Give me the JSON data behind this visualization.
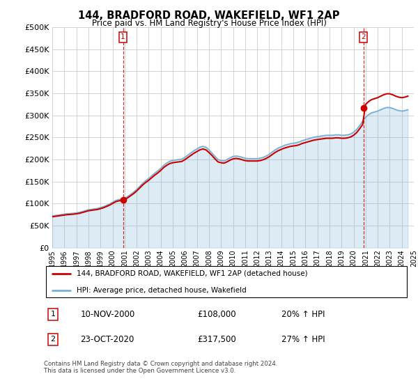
{
  "title": "144, BRADFORD ROAD, WAKEFIELD, WF1 2AP",
  "subtitle": "Price paid vs. HM Land Registry's House Price Index (HPI)",
  "legend_line1": "144, BRADFORD ROAD, WAKEFIELD, WF1 2AP (detached house)",
  "legend_line2": "HPI: Average price, detached house, Wakefield",
  "annotation1_label": "1",
  "annotation1_date": "10-NOV-2000",
  "annotation1_price": "£108,000",
  "annotation1_hpi": "20% ↑ HPI",
  "annotation1_year": 2000.87,
  "annotation1_value": 108000,
  "annotation2_label": "2",
  "annotation2_date": "23-OCT-2020",
  "annotation2_price": "£317,500",
  "annotation2_hpi": "27% ↑ HPI",
  "annotation2_year": 2020.81,
  "annotation2_value": 317500,
  "sale_color": "#cc0000",
  "hpi_color": "#7ab0d4",
  "ylim": [
    0,
    500000
  ],
  "yticks": [
    0,
    50000,
    100000,
    150000,
    200000,
    250000,
    300000,
    350000,
    400000,
    450000,
    500000
  ],
  "background_color": "#ffffff",
  "grid_color": "#cccccc",
  "footer_text": "Contains HM Land Registry data © Crown copyright and database right 2024.\nThis data is licensed under the Open Government Licence v3.0.",
  "hpi_years": [
    1995,
    1995.25,
    1995.5,
    1995.75,
    1996,
    1996.25,
    1996.5,
    1996.75,
    1997,
    1997.25,
    1997.5,
    1997.75,
    1998,
    1998.25,
    1998.5,
    1998.75,
    1999,
    1999.25,
    1999.5,
    1999.75,
    2000,
    2000.25,
    2000.5,
    2000.75,
    2001,
    2001.25,
    2001.5,
    2001.75,
    2002,
    2002.25,
    2002.5,
    2002.75,
    2003,
    2003.25,
    2003.5,
    2003.75,
    2004,
    2004.25,
    2004.5,
    2004.75,
    2005,
    2005.25,
    2005.5,
    2005.75,
    2006,
    2006.25,
    2006.5,
    2006.75,
    2007,
    2007.25,
    2007.5,
    2007.75,
    2008,
    2008.25,
    2008.5,
    2008.75,
    2009,
    2009.25,
    2009.5,
    2009.75,
    2010,
    2010.25,
    2010.5,
    2010.75,
    2011,
    2011.25,
    2011.5,
    2011.75,
    2012,
    2012.25,
    2012.5,
    2012.75,
    2013,
    2013.25,
    2013.5,
    2013.75,
    2014,
    2014.25,
    2014.5,
    2014.75,
    2015,
    2015.25,
    2015.5,
    2015.75,
    2016,
    2016.25,
    2016.5,
    2016.75,
    2017,
    2017.25,
    2017.5,
    2017.75,
    2018,
    2018.25,
    2018.5,
    2018.75,
    2019,
    2019.25,
    2019.5,
    2019.75,
    2020,
    2020.25,
    2020.5,
    2020.75,
    2021,
    2021.25,
    2021.5,
    2021.75,
    2022,
    2022.25,
    2022.5,
    2022.75,
    2023,
    2023.25,
    2023.5,
    2023.75,
    2024,
    2024.25,
    2024.5
  ],
  "hpi_values": [
    72000,
    73000,
    74000,
    75000,
    76000,
    77000,
    77500,
    78000,
    79000,
    80000,
    82000,
    84000,
    86000,
    87000,
    88000,
    89000,
    91000,
    93000,
    96000,
    99000,
    103000,
    107000,
    109000,
    110000,
    112000,
    116000,
    121000,
    126000,
    132000,
    139000,
    146000,
    152000,
    157000,
    163000,
    169000,
    174000,
    180000,
    187000,
    192000,
    196000,
    198000,
    199000,
    200000,
    201000,
    205000,
    210000,
    215000,
    220000,
    224000,
    228000,
    230000,
    228000,
    222000,
    215000,
    207000,
    200000,
    198000,
    197000,
    200000,
    204000,
    207000,
    208000,
    207000,
    205000,
    203000,
    202000,
    202000,
    202000,
    202000,
    203000,
    205000,
    208000,
    212000,
    217000,
    222000,
    226000,
    229000,
    232000,
    234000,
    236000,
    237000,
    238000,
    240000,
    243000,
    245000,
    247000,
    249000,
    251000,
    252000,
    253000,
    254000,
    255000,
    255000,
    255000,
    256000,
    256000,
    255000,
    255000,
    256000,
    258000,
    262000,
    268000,
    277000,
    287000,
    296000,
    302000,
    306000,
    308000,
    310000,
    313000,
    316000,
    318000,
    318000,
    316000,
    313000,
    311000,
    310000,
    311000,
    313000
  ],
  "price_paid_years": [
    2000.87,
    2020.81
  ],
  "price_paid_values": [
    108000,
    317500
  ],
  "xticks": [
    1995,
    1996,
    1997,
    1998,
    1999,
    2000,
    2001,
    2002,
    2003,
    2004,
    2005,
    2006,
    2007,
    2008,
    2009,
    2010,
    2011,
    2012,
    2013,
    2014,
    2015,
    2016,
    2017,
    2018,
    2019,
    2020,
    2021,
    2022,
    2023,
    2024,
    2025
  ]
}
